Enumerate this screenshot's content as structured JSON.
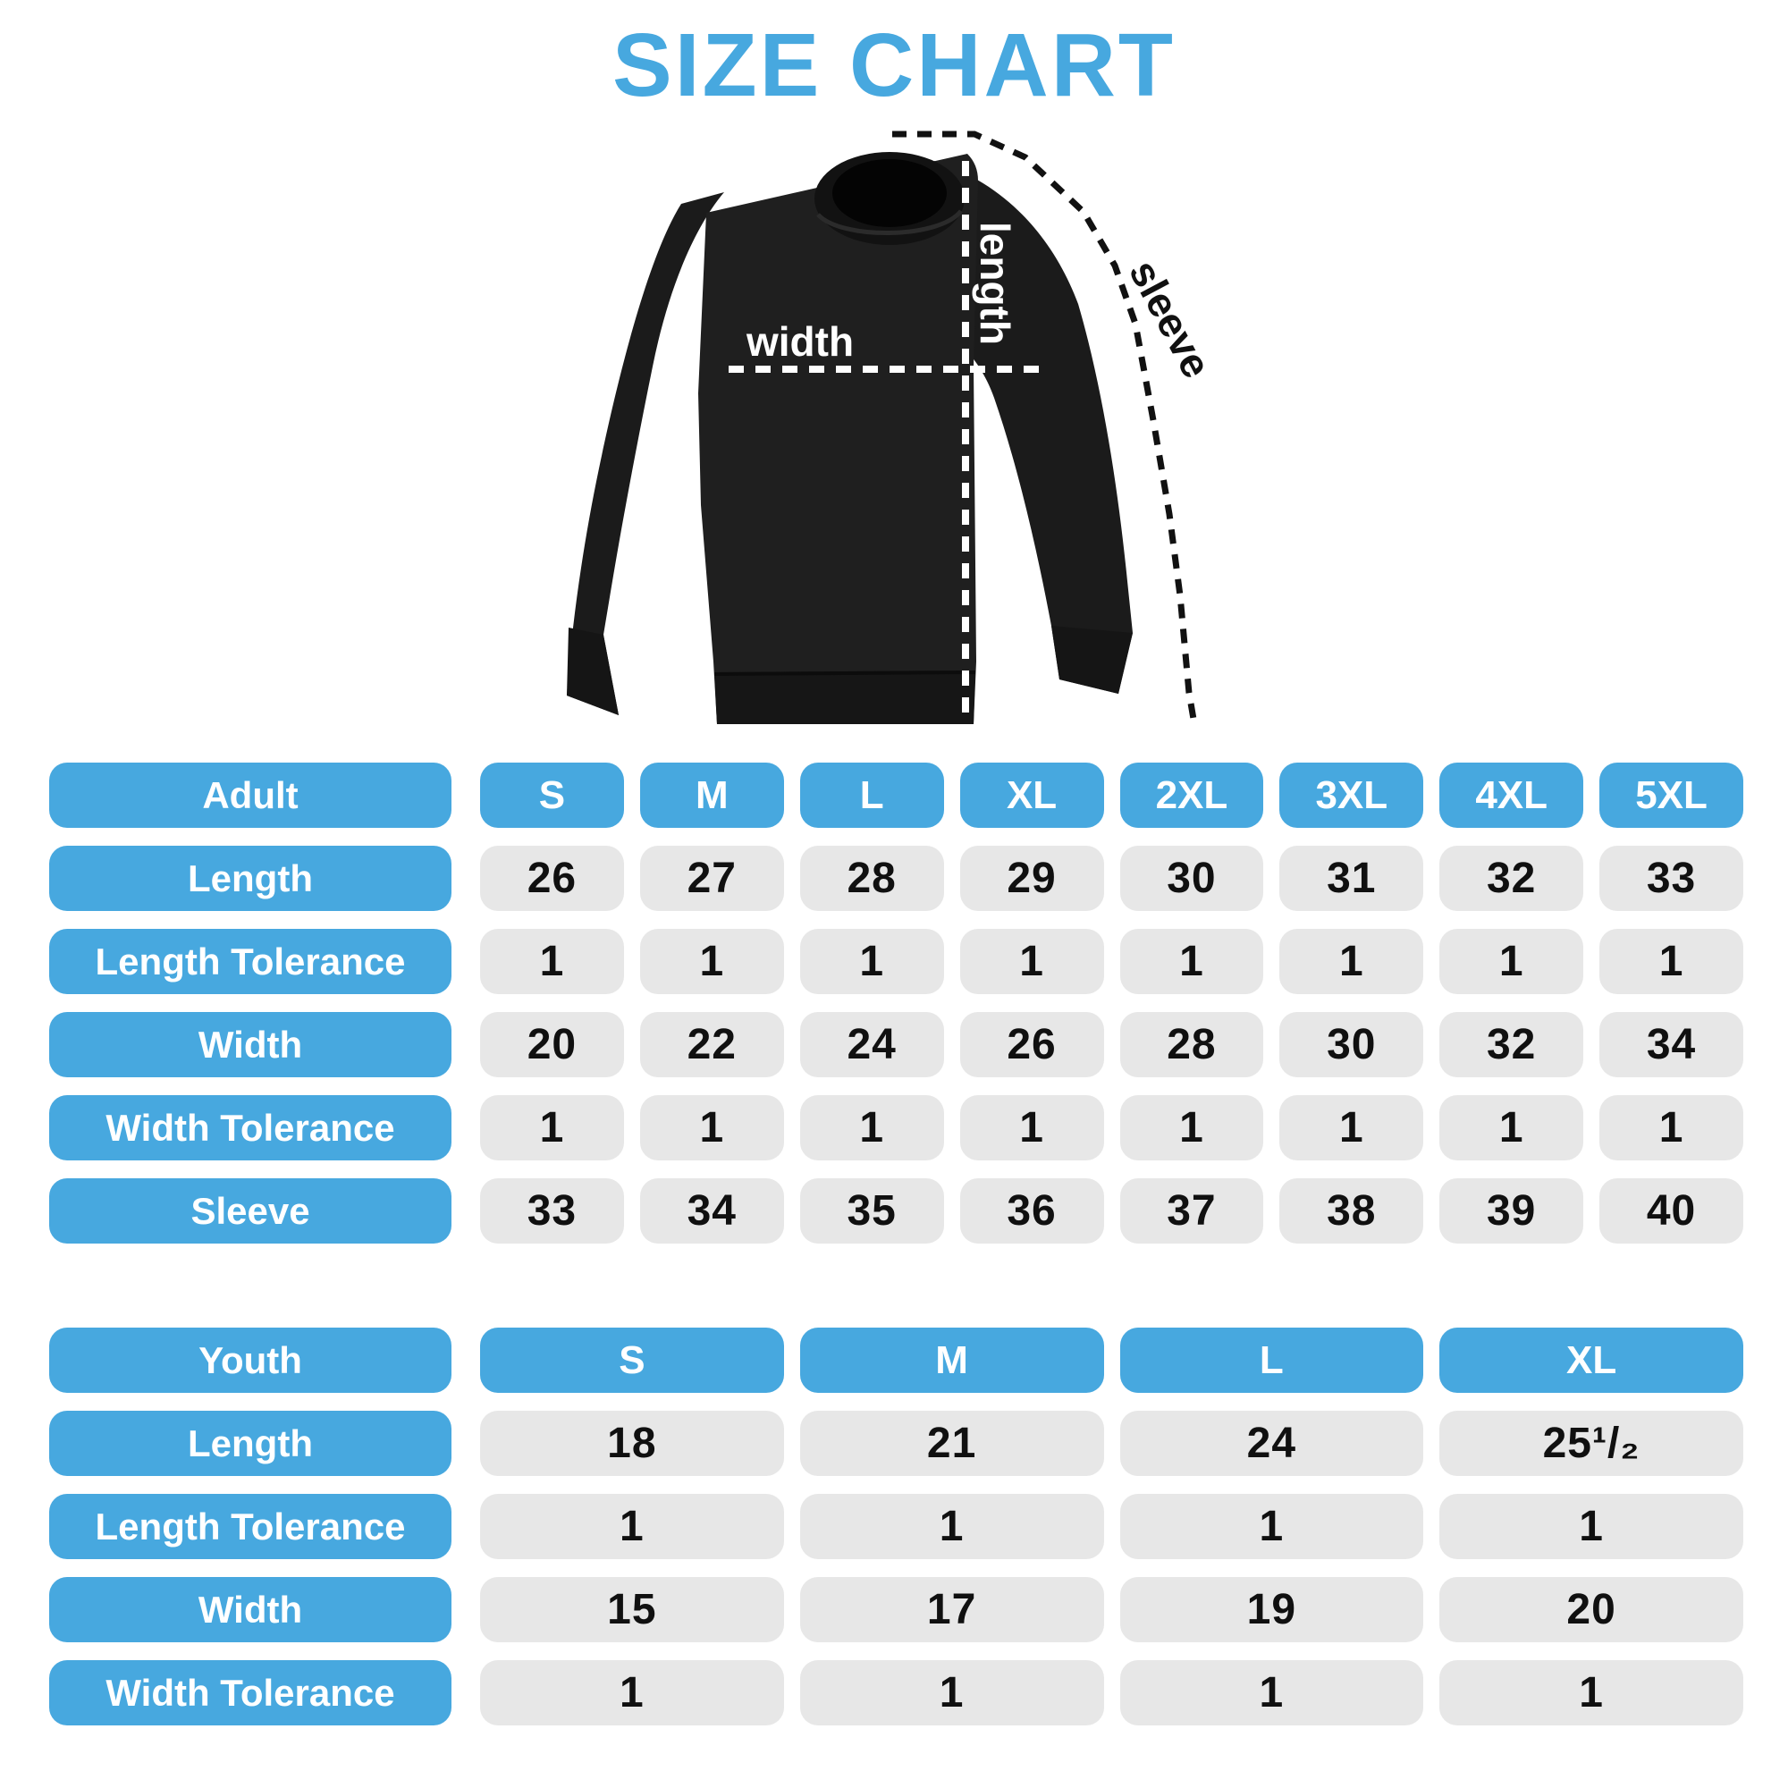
{
  "title": "SIZE CHART",
  "diagram": {
    "garment": "crewneck-sweatshirt",
    "garment_color": "#1d1d1d",
    "length_label": "length",
    "width_label": "width",
    "sleeve_label": "sleeve"
  },
  "colors": {
    "accent_blue": "#47a8df",
    "cell_gray": "#e7e7e7",
    "number_ink": "#101010",
    "background": "#ffffff"
  },
  "chart_data": [
    {
      "type": "table",
      "title": "Adult",
      "columns": [
        "Adult",
        "S",
        "M",
        "L",
        "XL",
        "2XL",
        "3XL",
        "4XL",
        "5XL"
      ],
      "rows": [
        [
          "Length",
          "26",
          "27",
          "28",
          "29",
          "30",
          "31",
          "32",
          "33"
        ],
        [
          "Length Tolerance",
          "1",
          "1",
          "1",
          "1",
          "1",
          "1",
          "1",
          "1"
        ],
        [
          "Width",
          "20",
          "22",
          "24",
          "26",
          "28",
          "30",
          "32",
          "34"
        ],
        [
          "Width Tolerance",
          "1",
          "1",
          "1",
          "1",
          "1",
          "1",
          "1",
          "1"
        ],
        [
          "Sleeve",
          "33",
          "34",
          "35",
          "36",
          "37",
          "38",
          "39",
          "40"
        ]
      ]
    },
    {
      "type": "table",
      "title": "Youth",
      "columns": [
        "Youth",
        "S",
        "M",
        "L",
        "XL"
      ],
      "rows": [
        [
          "Length",
          "18",
          "21",
          "24",
          "25¹/₂"
        ],
        [
          "Length Tolerance",
          "1",
          "1",
          "1",
          "1"
        ],
        [
          "Width",
          "15",
          "17",
          "19",
          "20"
        ],
        [
          "Width Tolerance",
          "1",
          "1",
          "1",
          "1"
        ]
      ]
    }
  ]
}
